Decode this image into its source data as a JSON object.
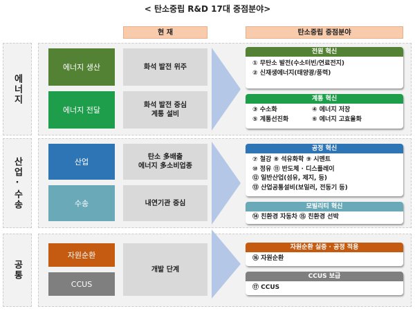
{
  "title": "< 탄소중립 R&D 17대 중점분야>",
  "headers": {
    "current": "현 재",
    "focus": "탄소중립 중점분야"
  },
  "sections": [
    {
      "label": "에너지",
      "rows": [
        {
          "name": "에너지 생산",
          "color": "#548235",
          "current": "화석 발전 위주"
        },
        {
          "name": "에너지 전달",
          "color": "#1e9e4a",
          "current": "화석 발전 중심\n계통 설비"
        }
      ],
      "cards": [
        {
          "title": "전원 혁신",
          "color": "#548235",
          "items": [
            "① 무탄소 발전(수소터빈/연료전지)",
            "② 신재생에너지(태양광/풍력)"
          ]
        },
        {
          "title": "계통 혁신",
          "color": "#1e9e4a",
          "items": [
            "③ 수소화",
            "④ 에너지 저장",
            "⑤ 계통선진화",
            "⑥ 에너지 고효율화"
          ]
        }
      ]
    },
    {
      "label": "산업·수송",
      "rows": [
        {
          "name": "산업",
          "color": "#2e75b6",
          "current": "탄소 多배출\n에너지 多소비업종"
        },
        {
          "name": "수송",
          "color": "#6aaab8",
          "current": "내연기관 중심"
        }
      ],
      "cards": [
        {
          "title": "공정 혁신",
          "color": "#2e75b6",
          "items": [
            "⑦ 철강  ⑧ 석유화학  ⑨ 시멘트",
            "⑩ 정유  ⑪ 반도체 · 디스플레이",
            "⑫ 일반산업(섬유, 제지, 등)",
            "⑬ 산업공통설비(보일러, 전동기 등)"
          ]
        },
        {
          "title": "모빌리티 혁신",
          "color": "#6aaab8",
          "items": [
            "⑭ 친환경 자동차  ⑮ 친환경 선박"
          ]
        }
      ]
    },
    {
      "label": "공통",
      "rows": [
        {
          "name": "자원순환",
          "color": "#c55a11"
        },
        {
          "name": "CCUS",
          "color": "#7f7f7f"
        }
      ],
      "current": "개발 단계",
      "cards": [
        {
          "title": "자원순환 실증 · 공정 적용",
          "color": "#c55a11",
          "items": [
            "⑯ 자원순환"
          ]
        },
        {
          "title": "CCUS 보급",
          "color": "#7f7f7f",
          "items": [
            "⑰ CCUS"
          ]
        }
      ]
    }
  ]
}
